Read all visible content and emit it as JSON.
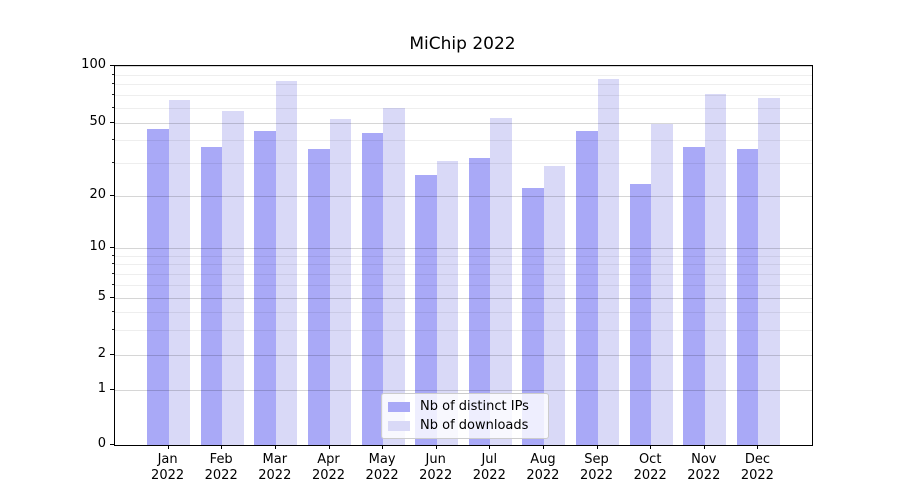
{
  "title": "MiChip 2022",
  "chart_data": {
    "type": "bar",
    "title": "MiChip 2022",
    "categories": [
      "Jan",
      "Feb",
      "Mar",
      "Apr",
      "May",
      "Jun",
      "Jul",
      "Aug",
      "Sep",
      "Oct",
      "Nov",
      "Dec"
    ],
    "category_year": "2022",
    "series": [
      {
        "name": "Nb of distinct IPs",
        "color": "#a9a9f7",
        "values": [
          46,
          37,
          45,
          36,
          44,
          26,
          32,
          22,
          45,
          23,
          37,
          36
        ]
      },
      {
        "name": "Nb of downloads",
        "color": "#d9d9f7",
        "values": [
          66,
          58,
          83,
          52,
          60,
          31,
          53,
          29,
          85,
          49,
          71,
          68
        ]
      }
    ],
    "xlabel": "",
    "ylabel": "",
    "y_axis": {
      "scale": "symlog",
      "major_ticks": [
        0,
        1,
        2,
        5,
        10,
        20,
        50,
        100
      ],
      "minor_ticks": [
        3,
        4,
        6,
        7,
        8,
        9,
        30,
        40,
        60,
        70,
        80,
        90
      ],
      "ylim": [
        0,
        100
      ]
    },
    "grid": "horizontal major and minor, drawn over bars",
    "legend_position": "lower center"
  }
}
